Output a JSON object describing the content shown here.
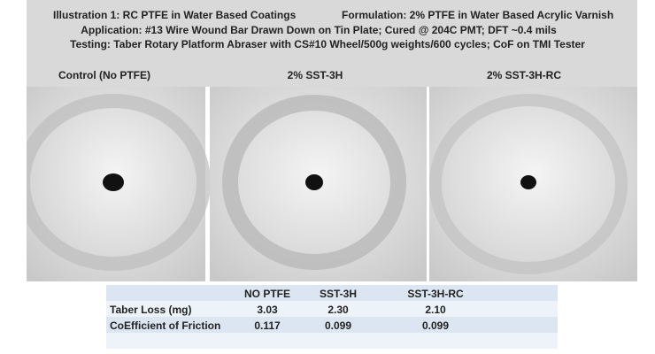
{
  "header": {
    "title_left": "Illustration 1: RC PTFE in Water Based Coatings",
    "title_right": "Formulation: 2% PTFE in Water Based Acrylic Varnish",
    "line2": "Application: #13 Wire Wound Bar Drawn Down on Tin Plate; Cured @ 204C PMT; DFT ~0.4 mils",
    "line3": "Testing: Taber Rotary Platform Abraser with CS#10 Wheel/500g weights/600 cycles; CoF on TMI Tester"
  },
  "panels": [
    {
      "label": "Control (No PTFE)"
    },
    {
      "label": "2% SST-3H"
    },
    {
      "label": "2% SST-3H-RC"
    }
  ],
  "table": {
    "columns": [
      "NO PTFE",
      "SST-3H",
      "SST-3H-RC"
    ],
    "rows": [
      {
        "label": "Taber Loss (mg)",
        "values": [
          "3.03",
          "2.30",
          "2.10"
        ]
      },
      {
        "label": "CoEfficient of Friction",
        "values": [
          "0.117",
          "0.099",
          "0.099"
        ]
      }
    ]
  }
}
